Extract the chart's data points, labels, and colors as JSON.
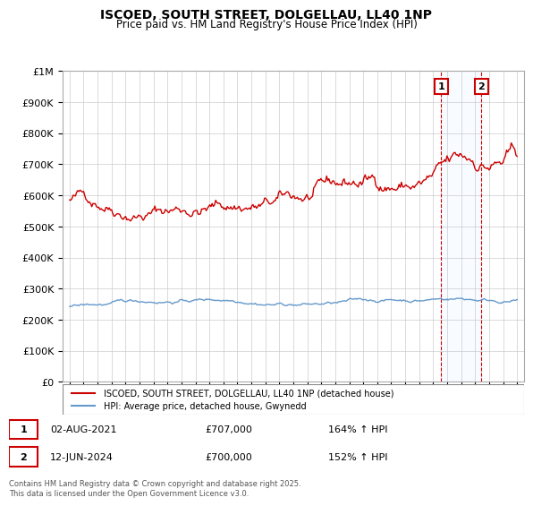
{
  "title": "ISCOED, SOUTH STREET, DOLGELLAU, LL40 1NP",
  "subtitle": "Price paid vs. HM Land Registry's House Price Index (HPI)",
  "ylabel_top": "£1M",
  "ylim": [
    0,
    1000000
  ],
  "yticks": [
    0,
    100000,
    200000,
    300000,
    400000,
    500000,
    600000,
    700000,
    800000,
    900000,
    1000000
  ],
  "ytick_labels": [
    "£0",
    "£100K",
    "£200K",
    "£300K",
    "£400K",
    "£500K",
    "£600K",
    "£700K",
    "£800K",
    "£900K",
    "£1M"
  ],
  "xlim_start": 1994.5,
  "xlim_end": 2027.5,
  "red_line_color": "#cc0000",
  "blue_line_color": "#6699cc",
  "marker1_date": 2021.58,
  "marker1_label": "1",
  "marker1_price": 707000,
  "marker1_text": "02-AUG-2021",
  "marker1_pct": "164% ↑ HPI",
  "marker2_date": 2024.45,
  "marker2_label": "2",
  "marker2_price": 700000,
  "marker2_text": "12-JUN-2024",
  "marker2_pct": "152% ↑ HPI",
  "legend_line1": "ISCOED, SOUTH STREET, DOLGELLAU, LL40 1NP (detached house)",
  "legend_line2": "HPI: Average price, detached house, Gwynedd",
  "footer": "Contains HM Land Registry data © Crown copyright and database right 2025.\nThis data is licensed under the Open Government Licence v3.0.",
  "background_color": "#ffffff",
  "grid_color": "#cccccc"
}
